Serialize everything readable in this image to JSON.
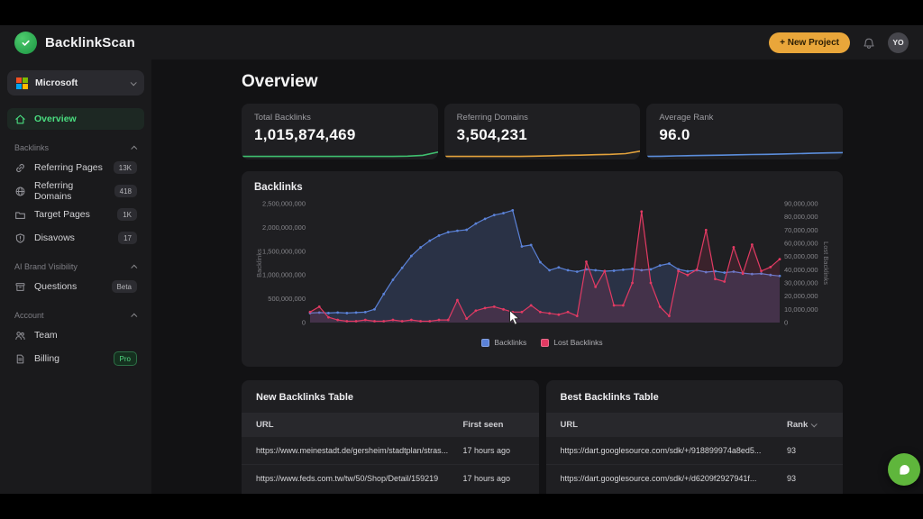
{
  "header": {
    "brand": "BacklinkScan",
    "new_project_label": "+ New Project",
    "avatar_initials": "YO",
    "accent_button_color": "#e9a63a"
  },
  "sidebar": {
    "project_name": "Microsoft",
    "overview_label": "Overview",
    "sections": [
      {
        "label": "Backlinks",
        "items": [
          {
            "label": "Referring Pages",
            "badge": "13K",
            "icon": "link-icon"
          },
          {
            "label": "Referring Domains",
            "badge": "418",
            "icon": "globe-icon"
          },
          {
            "label": "Target Pages",
            "badge": "1K",
            "icon": "folder-icon"
          },
          {
            "label": "Disavows",
            "badge": "17",
            "icon": "shield-alert-icon"
          }
        ]
      },
      {
        "label": "AI Brand Visibility",
        "items": [
          {
            "label": "Questions",
            "badge": "Beta",
            "icon": "archive-icon"
          }
        ]
      },
      {
        "label": "Account",
        "items": [
          {
            "label": "Team",
            "badge": "",
            "icon": "users-icon"
          },
          {
            "label": "Billing",
            "badge": "Pro",
            "icon": "invoice-icon"
          }
        ]
      }
    ]
  },
  "main": {
    "title": "Overview",
    "stat_cards": [
      {
        "label": "Total Backlinks",
        "value": "1,015,874,469",
        "accent": "#3fbf6f",
        "spark": [
          2,
          2,
          2,
          2,
          2,
          2,
          2,
          2,
          2,
          2,
          2,
          2.3,
          3,
          6
        ]
      },
      {
        "label": "Referring Domains",
        "value": "3,504,231",
        "accent": "#e3a23c",
        "spark": [
          2,
          2,
          2,
          2,
          2,
          2,
          2.3,
          2.6,
          3,
          3.2,
          3.6,
          4,
          4.6,
          7
        ]
      },
      {
        "label": "Average Rank",
        "value": "96.0",
        "accent": "#5b8ddb",
        "spark": [
          2,
          2.2,
          2.5,
          2.8,
          3,
          3.2,
          3.5,
          3.8,
          4,
          4.3,
          4.6,
          5,
          5.3,
          5.6
        ]
      }
    ],
    "tables": [
      {
        "title": "New Backlinks Table",
        "columns": [
          "URL",
          "First seen"
        ],
        "rows": [
          [
            "https://www.meinestadt.de/gersheim/stadtplan/stras...",
            "17 hours ago"
          ],
          [
            "https://www.feds.com.tw/tw/50/Shop/Detail/159219",
            "17 hours ago"
          ]
        ]
      },
      {
        "title": "Best Backlinks Table",
        "columns": [
          "URL",
          "Rank"
        ],
        "rows": [
          [
            "https://dart.googlesource.com/sdk/+/918899974a8ed5...",
            "93"
          ],
          [
            "https://dart.googlesource.com/sdk/+/d6209f2927941f...",
            "93"
          ]
        ],
        "sorted_by": "Rank"
      }
    ]
  },
  "chart_data": {
    "type": "line",
    "title": "Backlinks",
    "grid": false,
    "legend_position": "bottom",
    "legend": [
      "Backlinks",
      "Lost Backlinks"
    ],
    "left_axis": {
      "label": "Backlinks",
      "max_millions": 2500,
      "ticks": [
        "0",
        "500,000,000",
        "1,000,000,000",
        "1,500,000,000",
        "2,000,000,000",
        "2,500,000,000"
      ]
    },
    "right_axis": {
      "label": "Lost Backlinks",
      "max_millions": 90,
      "ticks": [
        "0",
        "10,000,000",
        "20,000,000",
        "30,000,000",
        "40,000,000",
        "50,000,000",
        "60,000,000",
        "70,000,000",
        "80,000,000",
        "90,000,000"
      ]
    },
    "series": [
      {
        "name": "Backlinks",
        "axis": "left",
        "color": "#5b82d8",
        "fill": "rgba(91,130,216,0.20)",
        "values_millions": [
          200,
          210,
          200,
          210,
          200,
          210,
          220,
          280,
          600,
          900,
          1150,
          1400,
          1580,
          1720,
          1830,
          1900,
          1930,
          1950,
          2080,
          2180,
          2260,
          2300,
          2360,
          1600,
          1630,
          1270,
          1100,
          1160,
          1100,
          1070,
          1120,
          1100,
          1080,
          1090,
          1110,
          1130,
          1100,
          1120,
          1200,
          1240,
          1120,
          1080,
          1100,
          1060,
          1080,
          1050,
          1070,
          1040,
          1020,
          1030,
          1000,
          980
        ]
      },
      {
        "name": "Lost Backlinks",
        "axis": "right",
        "color": "#e23a63",
        "fill": "rgba(226,58,99,0.14)",
        "values_millions": [
          8,
          12,
          4,
          2,
          1,
          1,
          2,
          1,
          1,
          2,
          1,
          2,
          1,
          1,
          2,
          2,
          17,
          3,
          9,
          11,
          12,
          10,
          8,
          8,
          13,
          8,
          7,
          6,
          8,
          5,
          46,
          27,
          39,
          13,
          13,
          30,
          84,
          30,
          12,
          5,
          39,
          36,
          40,
          70,
          33,
          31,
          57,
          37,
          59,
          39,
          42,
          48
        ]
      }
    ]
  },
  "chat_launcher": {
    "color": "#5fb63c",
    "icon": "chat-bubble-icon"
  }
}
